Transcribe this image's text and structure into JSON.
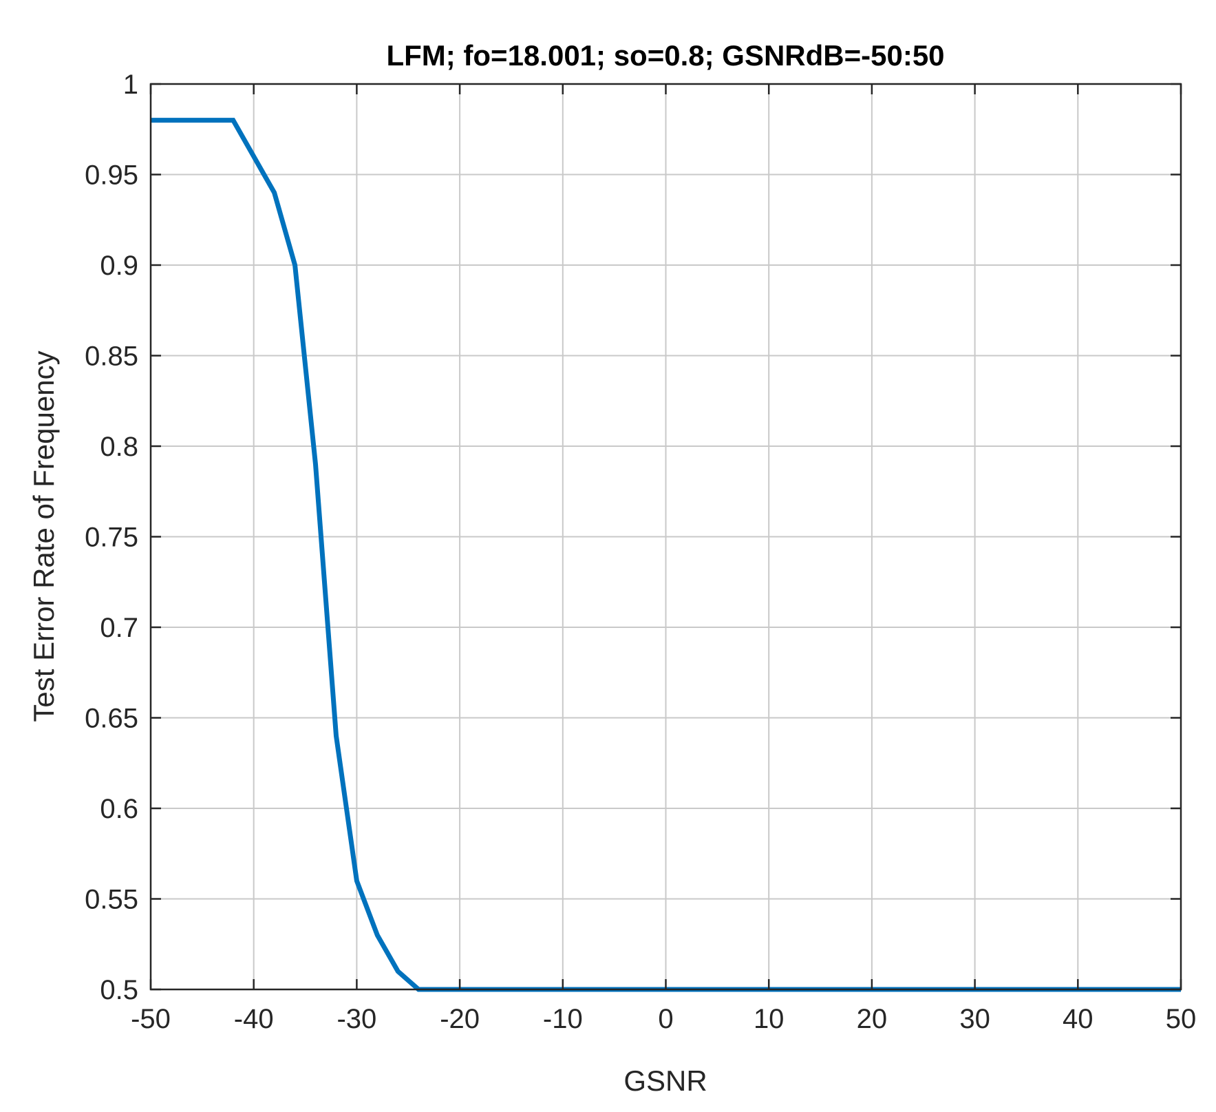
{
  "chart_data": {
    "type": "line",
    "title": "LFM; fo=18.001; so=0.8; GSNRdB=-50:50",
    "xlabel": "GSNR",
    "ylabel": "Test Error Rate of Frequency",
    "xlim": [
      -50,
      50
    ],
    "ylim": [
      0.5,
      1
    ],
    "xticks": [
      -50,
      -40,
      -30,
      -20,
      -10,
      0,
      10,
      20,
      30,
      40,
      50
    ],
    "xtick_labels": [
      "-50",
      "-40",
      "-30",
      "-20",
      "-10",
      "0",
      "10",
      "20",
      "30",
      "40",
      "50"
    ],
    "yticks": [
      0.5,
      0.55,
      0.6,
      0.65,
      0.7,
      0.75,
      0.8,
      0.85,
      0.9,
      0.95,
      1
    ],
    "ytick_labels": [
      "0.5",
      "0.55",
      "0.6",
      "0.65",
      "0.7",
      "0.75",
      "0.8",
      "0.85",
      "0.9",
      "0.95",
      "1"
    ],
    "grid": true,
    "series": [
      {
        "color": "#0072BD",
        "x": [
          -50,
          -48,
          -46,
          -44,
          -42,
          -40,
          -38,
          -36,
          -34,
          -32,
          -30,
          -28,
          -26,
          -24,
          -22,
          -20,
          -10,
          0,
          10,
          20,
          30,
          40,
          50
        ],
        "y": [
          0.98,
          0.98,
          0.98,
          0.98,
          0.98,
          0.96,
          0.94,
          0.9,
          0.79,
          0.64,
          0.56,
          0.53,
          0.51,
          0.5,
          0.5,
          0.5,
          0.5,
          0.5,
          0.5,
          0.5,
          0.5,
          0.5,
          0.5
        ]
      }
    ]
  }
}
